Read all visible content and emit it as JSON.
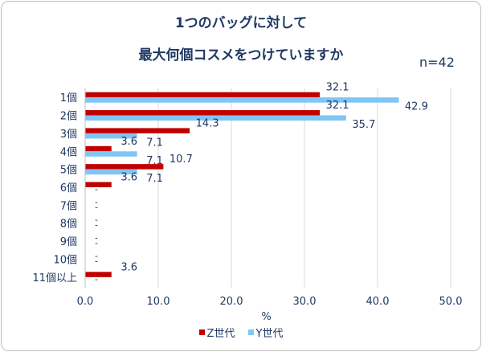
{
  "chart_data": {
    "type": "bar",
    "orientation": "horizontal",
    "title_lines": [
      "1つのバッグに対して",
      "最大何個コスメをつけていますか"
    ],
    "note": "n=42",
    "xlabel": "%",
    "xlim": [
      0,
      50
    ],
    "xticks": [
      "0.0",
      "10.0",
      "20.0",
      "30.0",
      "40.0",
      "50.0"
    ],
    "categories": [
      "1個",
      "2個",
      "3個",
      "4個",
      "5個",
      "6個",
      "7個",
      "8個",
      "9個",
      "10個",
      "11個以上"
    ],
    "series": [
      {
        "name": "Z世代",
        "color": "#c00000",
        "values": [
          32.1,
          32.1,
          14.3,
          3.6,
          10.7,
          3.6,
          null,
          null,
          null,
          null,
          3.6
        ],
        "labels": [
          "32.1",
          "32.1",
          "14.3",
          "3.6",
          "10.7",
          "3.6",
          "",
          "",
          "",
          "",
          "3.6"
        ]
      },
      {
        "name": "Y世代",
        "color": "#7fc6f4",
        "values": [
          42.9,
          35.7,
          7.1,
          7.1,
          7.1,
          null,
          null,
          null,
          null,
          null,
          null
        ],
        "labels": [
          "42.9",
          "35.7",
          "7.1",
          "7.1",
          "7.1",
          "",
          "",
          "",
          "",
          "",
          ""
        ]
      }
    ],
    "empty_marker": "-",
    "grid": true,
    "legend_position": "bottom"
  }
}
